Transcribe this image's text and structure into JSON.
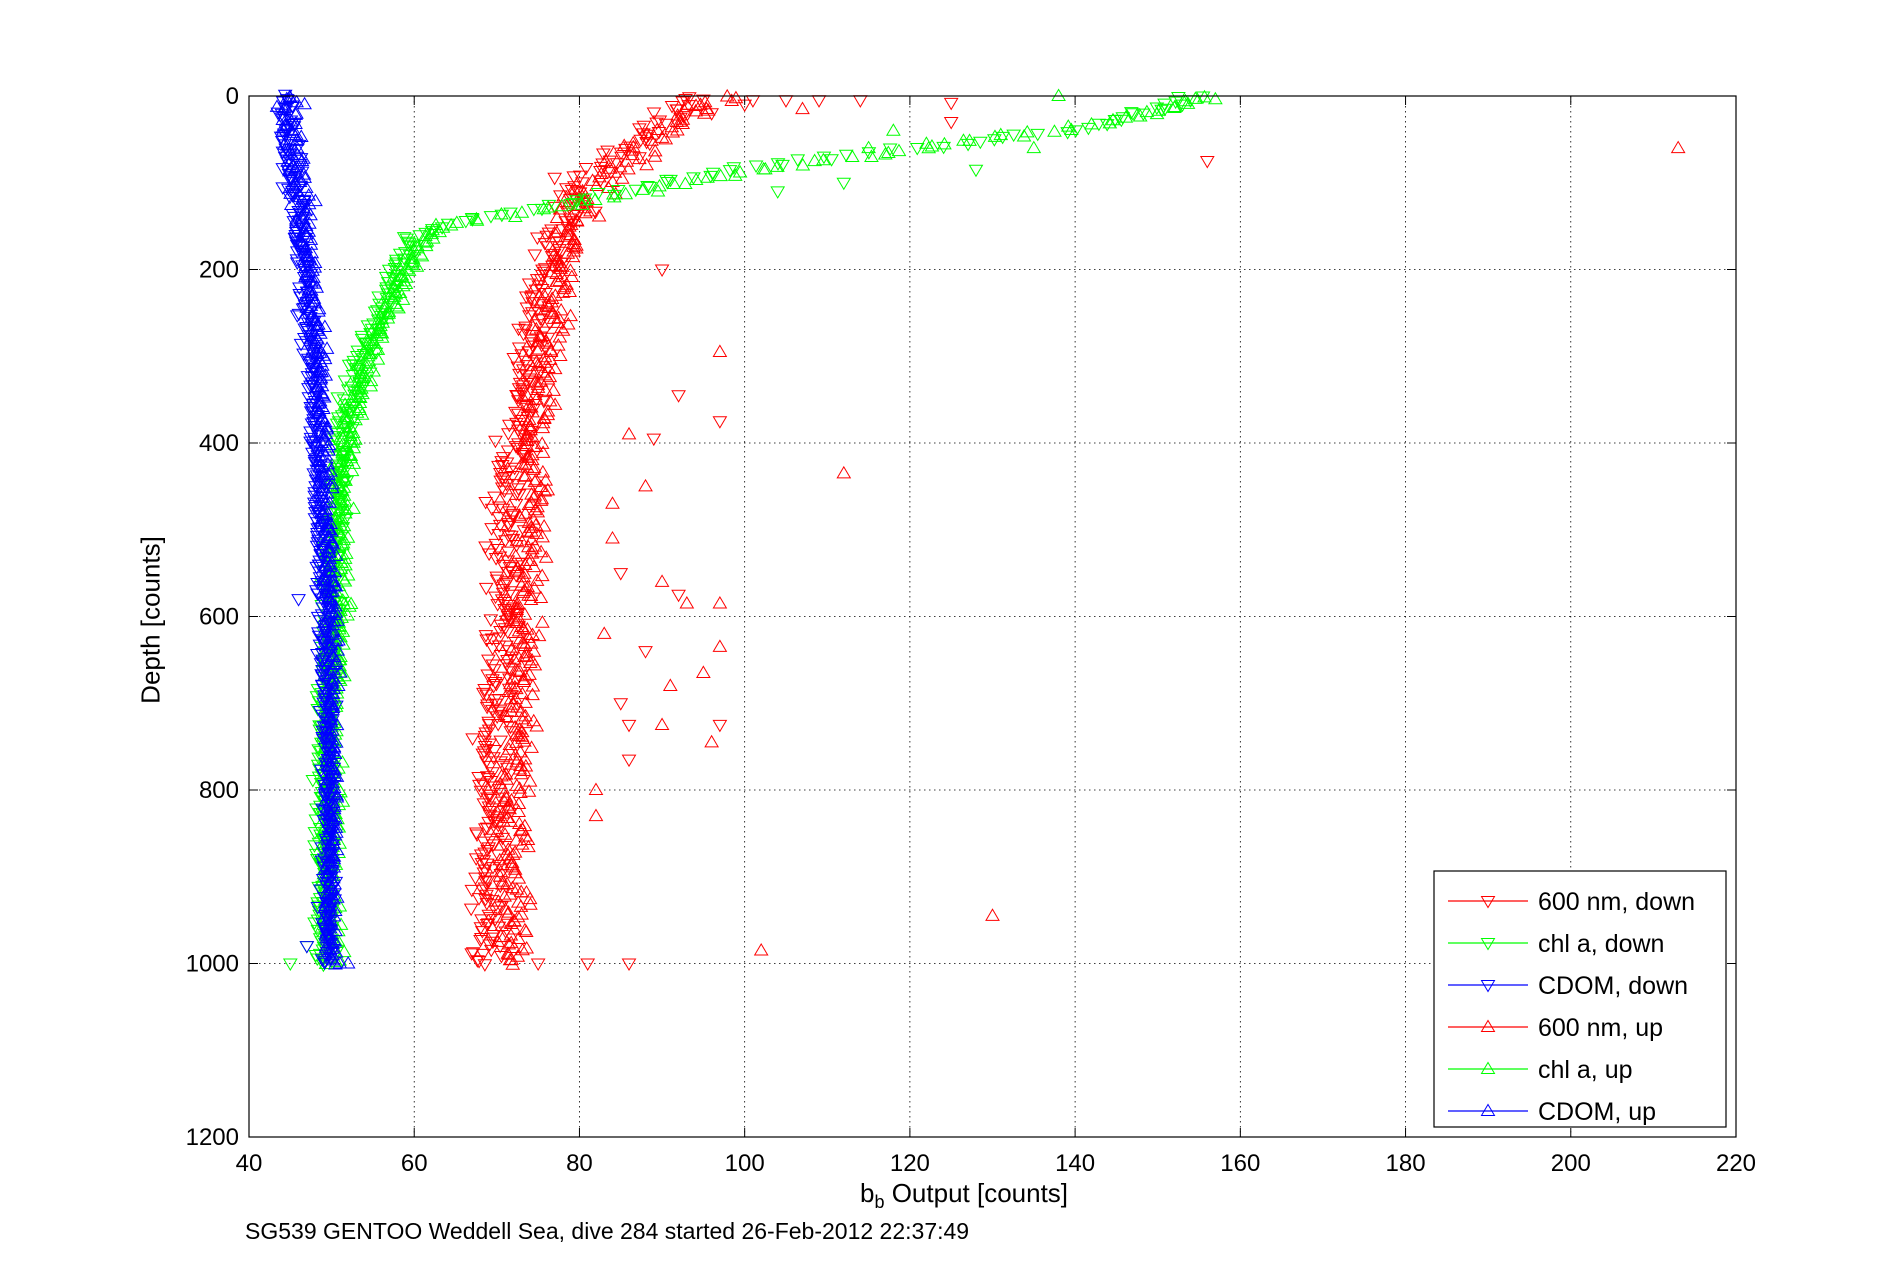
{
  "chart_data": {
    "type": "scatter",
    "caption": "SG539 GENTOO Weddell Sea, dive 284 started 26-Feb-2012 22:37:49",
    "xlabel": {
      "main": "b",
      "sub": "b",
      "rest": " Output [counts]"
    },
    "ylabel": "Depth [counts]",
    "xlim": [
      40,
      220
    ],
    "ylim": [
      1200,
      0
    ],
    "y_reversed": true,
    "grid": true,
    "grid_style": "dotted",
    "xticks": [
      40,
      60,
      80,
      100,
      120,
      140,
      160,
      180,
      200,
      220
    ],
    "yticks": [
      0,
      200,
      400,
      600,
      800,
      1000,
      1200
    ],
    "legend_position": "bottom-right",
    "series": [
      {
        "name": "600 nm, down",
        "color": "#ff0000",
        "marker": "triangle-down",
        "profile": [
          [
            0,
            93
          ],
          [
            30,
            90
          ],
          [
            60,
            86
          ],
          [
            100,
            80
          ],
          [
            130,
            79
          ],
          [
            160,
            77
          ],
          [
            200,
            76
          ],
          [
            300,
            74
          ],
          [
            400,
            72
          ],
          [
            500,
            71
          ],
          [
            600,
            71
          ],
          [
            700,
            70
          ],
          [
            800,
            69
          ],
          [
            900,
            69
          ],
          [
            1000,
            69
          ]
        ],
        "spread": 3.0,
        "outliers": [
          [
            101,
            5
          ],
          [
            105,
            5
          ],
          [
            109,
            5
          ],
          [
            114,
            5
          ],
          [
            96,
            20
          ],
          [
            125,
            30
          ],
          [
            90,
            200
          ],
          [
            92,
            345
          ],
          [
            97,
            375
          ],
          [
            89,
            395
          ],
          [
            85,
            550
          ],
          [
            92,
            575
          ],
          [
            88,
            640
          ],
          [
            85,
            700
          ],
          [
            86,
            725
          ],
          [
            86,
            765
          ],
          [
            97,
            725
          ],
          [
            75,
            1000
          ],
          [
            81,
            1000
          ],
          [
            86,
            1000
          ],
          [
            156,
            75
          ],
          [
            125,
            8
          ],
          [
            100,
            10
          ]
        ]
      },
      {
        "name": "chl a, down",
        "color": "#00ff00",
        "marker": "triangle-down",
        "profile": [
          [
            0,
            155
          ],
          [
            40,
            140
          ],
          [
            70,
            110
          ],
          [
            90,
            95
          ],
          [
            110,
            85
          ],
          [
            130,
            75
          ],
          [
            145,
            65
          ],
          [
            160,
            60
          ],
          [
            200,
            58
          ],
          [
            250,
            56
          ],
          [
            300,
            54
          ],
          [
            350,
            52
          ],
          [
            400,
            51
          ],
          [
            450,
            51
          ],
          [
            500,
            50
          ],
          [
            600,
            50
          ],
          [
            700,
            49
          ],
          [
            800,
            49
          ],
          [
            900,
            49
          ],
          [
            1000,
            49
          ]
        ],
        "spread": 1.8,
        "outliers": [
          [
            128,
            85
          ],
          [
            112,
            100
          ],
          [
            104,
            110
          ],
          [
            147,
            20
          ],
          [
            153,
            10
          ],
          [
            45,
            1000
          ],
          [
            47,
            980
          ]
        ]
      },
      {
        "name": "CDOM, down",
        "color": "#0000ff",
        "marker": "triangle-down",
        "profile": [
          [
            0,
            44.5
          ],
          [
            100,
            45.5
          ],
          [
            200,
            46.5
          ],
          [
            300,
            47.5
          ],
          [
            400,
            48
          ],
          [
            500,
            48.5
          ],
          [
            600,
            49
          ],
          [
            700,
            49.5
          ],
          [
            800,
            49.5
          ],
          [
            900,
            49.5
          ],
          [
            1000,
            49.5
          ]
        ],
        "spread": 1.3,
        "outliers": [
          [
            46,
            580
          ],
          [
            47,
            980
          ]
        ]
      },
      {
        "name": "600 nm, up",
        "color": "#ff0000",
        "marker": "triangle-up",
        "profile": [
          [
            0,
            97
          ],
          [
            30,
            92
          ],
          [
            60,
            88
          ],
          [
            100,
            82
          ],
          [
            130,
            80
          ],
          [
            160,
            79
          ],
          [
            200,
            78
          ],
          [
            300,
            76
          ],
          [
            400,
            74
          ],
          [
            500,
            74
          ],
          [
            600,
            73
          ],
          [
            700,
            73
          ],
          [
            800,
            72
          ],
          [
            900,
            72
          ],
          [
            1000,
            72
          ]
        ],
        "spread": 3.0,
        "outliers": [
          [
            213,
            60
          ],
          [
            112,
            435
          ],
          [
            130,
            945
          ],
          [
            102,
            985
          ],
          [
            97,
            295
          ],
          [
            90,
            560
          ],
          [
            93,
            585
          ],
          [
            97,
            585
          ],
          [
            97,
            635
          ],
          [
            95,
            665
          ],
          [
            91,
            680
          ],
          [
            90,
            725
          ],
          [
            96,
            745
          ],
          [
            83,
            620
          ],
          [
            86,
            390
          ],
          [
            84,
            470
          ],
          [
            88,
            450
          ],
          [
            84,
            510
          ],
          [
            82,
            800
          ],
          [
            82,
            830
          ],
          [
            93,
            10
          ],
          [
            107,
            15
          ]
        ]
      },
      {
        "name": "chl a, up",
        "color": "#00ff00",
        "marker": "triangle-up",
        "profile": [
          [
            0,
            157
          ],
          [
            30,
            145
          ],
          [
            55,
            125
          ],
          [
            75,
            110
          ],
          [
            95,
            95
          ],
          [
            115,
            85
          ],
          [
            130,
            75
          ],
          [
            145,
            66
          ],
          [
            160,
            62
          ],
          [
            200,
            59
          ],
          [
            250,
            57
          ],
          [
            300,
            55
          ],
          [
            350,
            53
          ],
          [
            400,
            52
          ],
          [
            450,
            51
          ],
          [
            500,
            51
          ],
          [
            600,
            51
          ],
          [
            700,
            50
          ],
          [
            800,
            50
          ],
          [
            900,
            50
          ],
          [
            1000,
            50
          ]
        ],
        "spread": 1.8,
        "outliers": [
          [
            138,
            0
          ],
          [
            131,
            45
          ],
          [
            135,
            60
          ],
          [
            118,
            40
          ],
          [
            122,
            55
          ],
          [
            115,
            60
          ]
        ]
      },
      {
        "name": "CDOM, up",
        "color": "#0000ff",
        "marker": "triangle-up",
        "profile": [
          [
            0,
            45
          ],
          [
            100,
            46
          ],
          [
            200,
            47.5
          ],
          [
            300,
            48.5
          ],
          [
            400,
            49
          ],
          [
            500,
            49.5
          ],
          [
            600,
            50
          ],
          [
            700,
            50
          ],
          [
            800,
            50
          ],
          [
            900,
            50
          ],
          [
            1000,
            50
          ]
        ],
        "spread": 1.3,
        "outliers": [
          [
            51,
            1000
          ],
          [
            52,
            1000
          ]
        ]
      }
    ]
  }
}
